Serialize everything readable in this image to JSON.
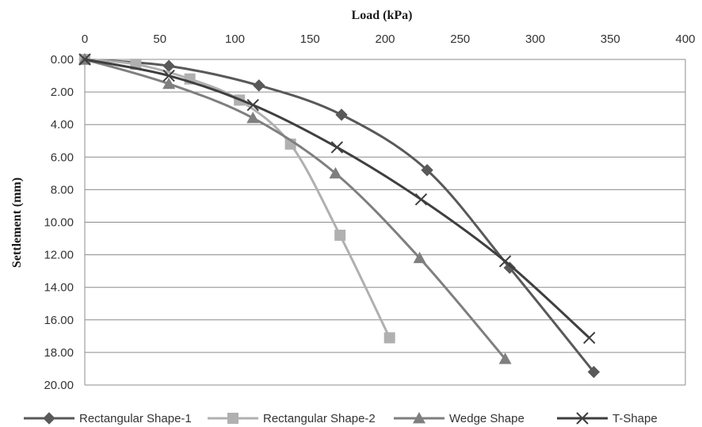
{
  "chart_data": {
    "type": "line",
    "title": "",
    "xlabel": "Load (kPa)",
    "ylabel": "Settlement (mm)",
    "x_axis_position": "top",
    "y_axis_inverted": true,
    "xlim": [
      0,
      400
    ],
    "ylim": [
      0,
      20
    ],
    "x_ticks": [
      0,
      50,
      100,
      150,
      200,
      250,
      300,
      350,
      400
    ],
    "x_tick_labels": [
      "0",
      "50",
      "100",
      "150",
      "200",
      "250",
      "300",
      "350",
      "400"
    ],
    "y_ticks": [
      0,
      2,
      4,
      6,
      8,
      10,
      12,
      14,
      16,
      18,
      20
    ],
    "y_tick_labels": [
      "0.00",
      "2.00",
      "4.00",
      "6.00",
      "8.00",
      "10.00",
      "12.00",
      "14.00",
      "16.00",
      "18.00",
      "20.00"
    ],
    "grid": "horizontal",
    "legend_position": "bottom",
    "series": [
      {
        "name": "Rectangular Shape-1",
        "color": "#595959",
        "marker": "diamond",
        "points": [
          [
            0,
            0
          ],
          [
            56,
            0.4
          ],
          [
            116,
            1.6
          ],
          [
            171,
            3.4
          ],
          [
            228,
            6.8
          ],
          [
            283,
            12.8
          ],
          [
            339,
            19.2
          ]
        ]
      },
      {
        "name": "Rectangular Shape-2",
        "color": "#b0b0b0",
        "marker": "square",
        "points": [
          [
            0,
            0
          ],
          [
            34,
            0.3
          ],
          [
            70,
            1.2
          ],
          [
            103,
            2.5
          ],
          [
            137,
            5.2
          ],
          [
            170,
            10.8
          ],
          [
            203,
            17.1
          ]
        ]
      },
      {
        "name": "Wedge Shape",
        "color": "#7f7f7f",
        "marker": "triangle",
        "points": [
          [
            0,
            0
          ],
          [
            56,
            1.5
          ],
          [
            112,
            3.6
          ],
          [
            167,
            7.0
          ],
          [
            223,
            12.2
          ],
          [
            280,
            18.4
          ]
        ]
      },
      {
        "name": "T-Shape",
        "color": "#3f3f3f",
        "marker": "x",
        "points": [
          [
            0,
            0
          ],
          [
            56,
            1.0
          ],
          [
            112,
            2.8
          ],
          [
            168,
            5.4
          ],
          [
            224,
            8.6
          ],
          [
            280,
            12.4
          ],
          [
            336,
            17.1
          ]
        ]
      }
    ]
  }
}
